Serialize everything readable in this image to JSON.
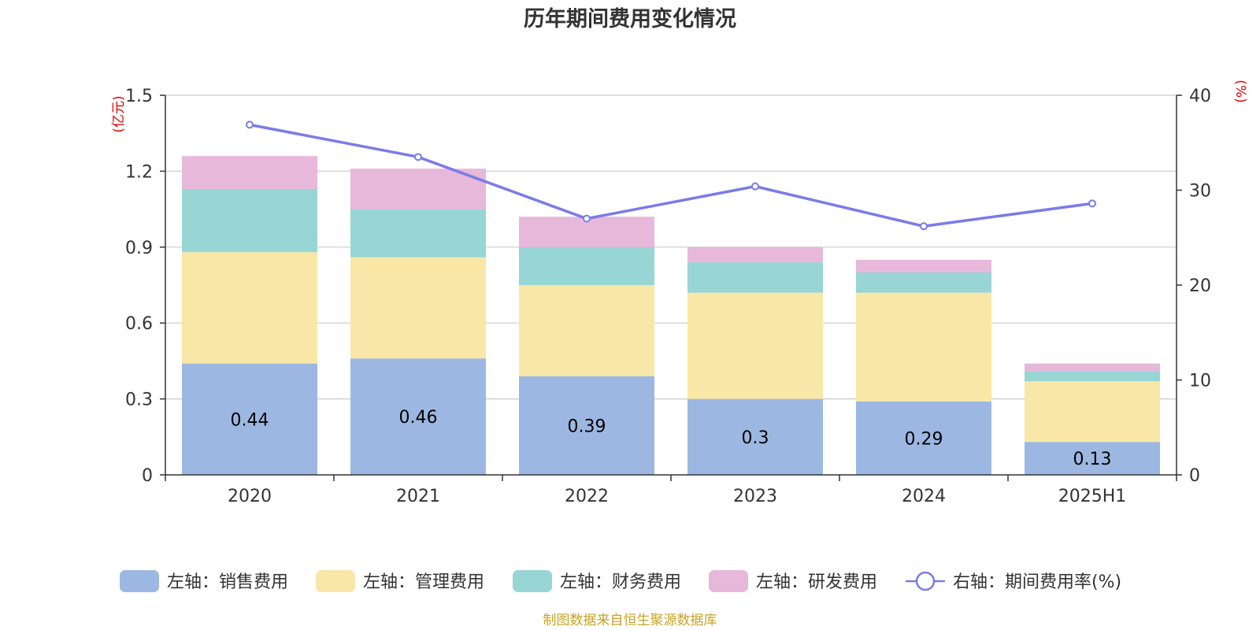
{
  "chart_data": {
    "type": "bar",
    "stacked": true,
    "title": "历年期间费用变化情况",
    "categories": [
      "2020",
      "2021",
      "2022",
      "2023",
      "2024",
      "2025H1"
    ],
    "left_axis": {
      "unit": "(亿元)",
      "ylim": [
        0,
        1.5
      ],
      "ticks": [
        "0",
        "0.3",
        "0.6",
        "0.9",
        "1.2",
        "1.5"
      ]
    },
    "right_axis": {
      "unit": "(%)",
      "ylim": [
        0,
        40
      ],
      "ticks": [
        "0",
        "10",
        "20",
        "30",
        "40"
      ]
    },
    "series": [
      {
        "name": "左轴：销售费用",
        "axis": "left",
        "color": "#9cb8e2",
        "values": [
          0.44,
          0.46,
          0.39,
          0.3,
          0.29,
          0.13
        ],
        "labels": [
          "0.44",
          "0.46",
          "0.39",
          "0.3",
          "0.29",
          "0.13"
        ]
      },
      {
        "name": "左轴：管理费用",
        "axis": "left",
        "color": "#f8e7a6",
        "values": [
          0.44,
          0.4,
          0.36,
          0.42,
          0.43,
          0.24
        ]
      },
      {
        "name": "左轴：财务费用",
        "axis": "left",
        "color": "#98d5d5",
        "values": [
          0.25,
          0.19,
          0.15,
          0.12,
          0.08,
          0.04
        ]
      },
      {
        "name": "左轴：研发费用",
        "axis": "left",
        "color": "#e7b8da",
        "values": [
          0.13,
          0.16,
          0.12,
          0.06,
          0.05,
          0.03
        ]
      }
    ],
    "line": {
      "name": "右轴：期间费用率(%)",
      "axis": "right",
      "type": "line",
      "color": "#7b7be8",
      "values": [
        36.9,
        33.5,
        27.0,
        30.4,
        26.2,
        28.6
      ]
    },
    "legend_position": "bottom",
    "grid": true,
    "source": "制图数据来自恒生聚源数据库"
  }
}
